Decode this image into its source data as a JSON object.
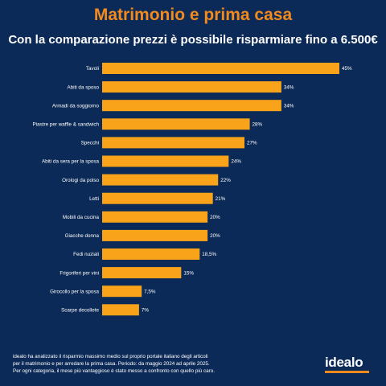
{
  "header": {
    "title": "Matrimonio e prima casa",
    "subtitle": "Con la comparazione prezzi è possibile risparmiare fino a 6.500€"
  },
  "footer": {
    "note_line1": "idealo ha analizzato il risparmio massimo medio sul proprio portale italiano degli articoli",
    "note_line2": "per il matrimonio e per arredare la prima casa. Periodo: da maggio 2024 ad aprile 2025.",
    "note_line3": "Per ogni categoria, il mese più vantaggioso è stato messo a confronto con quello più caro.",
    "logo": "idealo"
  },
  "colors": {
    "background": "#0c2a57",
    "bar": "#f9a31a",
    "title": "#f28a1e",
    "text": "#ffffff"
  },
  "chart_data": {
    "type": "bar",
    "orientation": "horizontal",
    "categories": [
      "Tavoli",
      "Abiti da sposo",
      "Armadi da soggiorno",
      "Piastre per waffle & sandwich",
      "Specchi",
      "Abiti da sera per la sposa",
      "Orologi da polso",
      "Letti",
      "Mobili da cucina",
      "Giacche donna",
      "Fedi nuziali",
      "Frigoriferi per vini",
      "Girocollo per la sposa",
      "Scarpe decollete"
    ],
    "values": [
      45,
      34,
      34,
      28,
      27,
      24,
      22,
      21,
      20,
      20,
      18.5,
      15,
      7.5,
      7
    ],
    "value_labels": [
      "45%",
      "34%",
      "34%",
      "28%",
      "27%",
      "24%",
      "22%",
      "21%",
      "20%",
      "20%",
      "18,5%",
      "15%",
      "7,5%",
      "7%"
    ],
    "xlim": [
      0,
      45
    ],
    "grid": false,
    "legend": "none"
  }
}
